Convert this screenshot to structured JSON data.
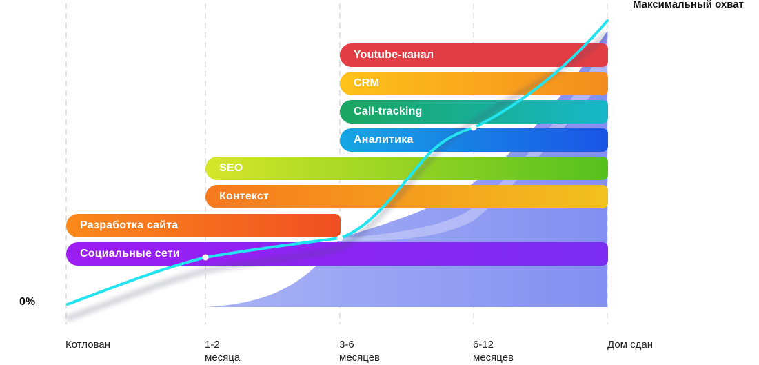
{
  "top_label": "Максимальный охват",
  "zero_label": "0%",
  "timeline": {
    "stages": [
      {
        "line1": "Котлован",
        "line2": ""
      },
      {
        "line1": "1-2",
        "line2": "месяца"
      },
      {
        "line1": "3-6",
        "line2": "месяцев"
      },
      {
        "line1": "6-12",
        "line2": "месяцев"
      },
      {
        "line1": "Дом сдан",
        "line2": ""
      }
    ]
  },
  "bars": [
    {
      "label": "Youtube-канал",
      "start_stage": 2,
      "end_stage": 4,
      "colors": [
        "#e23d44",
        "#e23d44"
      ]
    },
    {
      "label": "CRM",
      "start_stage": 2,
      "end_stage": 4,
      "colors": [
        "#ffc21a",
        "#f38c1f"
      ]
    },
    {
      "label": "Call-tracking",
      "start_stage": 2,
      "end_stage": 4,
      "colors": [
        "#1aa660",
        "#17b7c9"
      ]
    },
    {
      "label": "Аналитика",
      "start_stage": 2,
      "end_stage": 4,
      "colors": [
        "#17a7e3",
        "#1a54e6"
      ]
    },
    {
      "label": "SEO",
      "start_stage": 1,
      "end_stage": 4,
      "colors": [
        "#d6e62a",
        "#55c01f"
      ]
    },
    {
      "label": "Контекст",
      "start_stage": 1,
      "end_stage": 4,
      "colors": [
        "#f7781e",
        "#f2c21f"
      ]
    },
    {
      "label": "Разработка сайта",
      "start_stage": 0,
      "end_stage": 2,
      "colors": [
        "#fb8a1b",
        "#ef4f22"
      ]
    },
    {
      "label": "Социальные сети",
      "start_stage": 0,
      "end_stage": 4,
      "colors": [
        "#9c1df2",
        "#7a2cf3"
      ]
    }
  ],
  "colors": {
    "curve": "#22e3f0",
    "area": "#8a94f2",
    "dashed": "#bfbfbf",
    "point": "#ffffff"
  }
}
